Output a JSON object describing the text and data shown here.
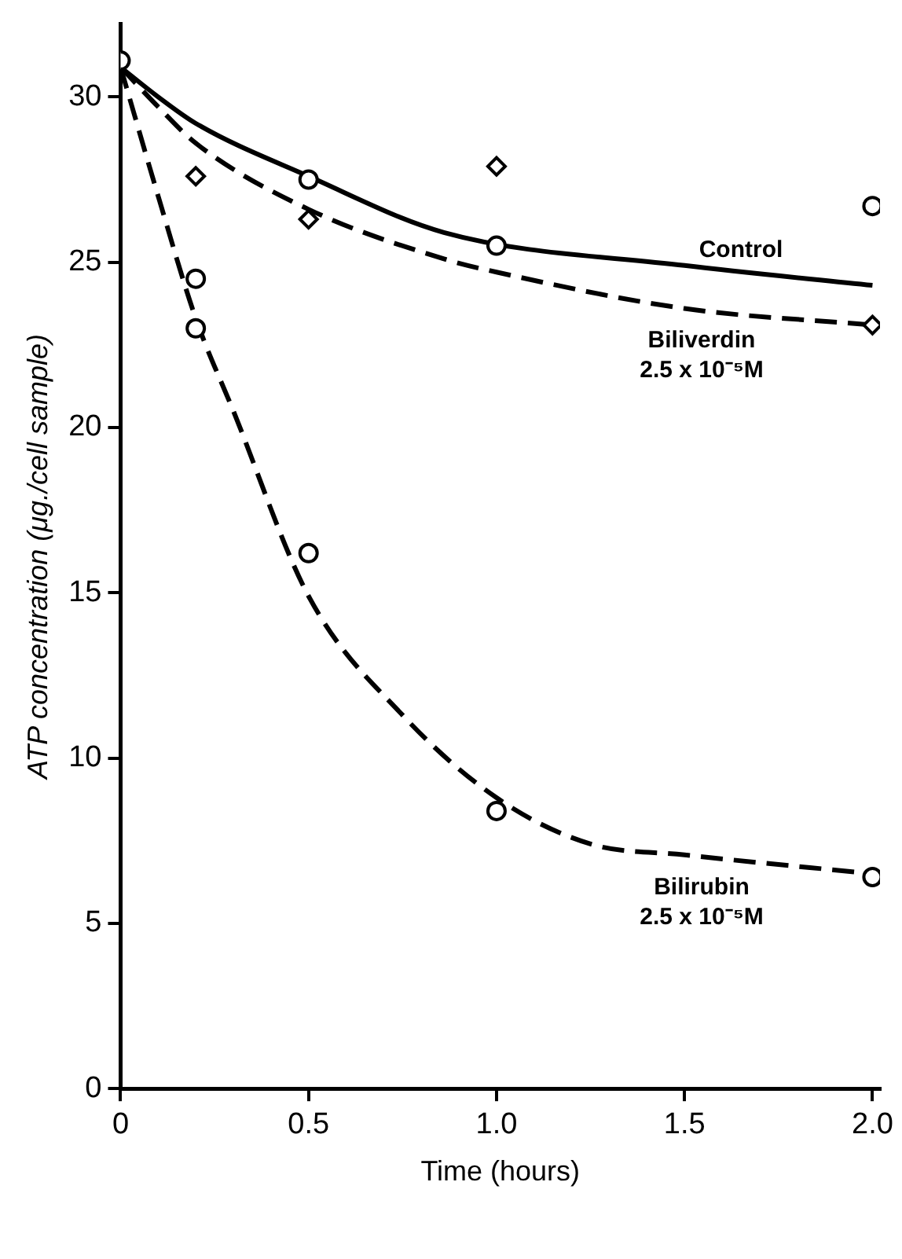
{
  "chart_data": {
    "type": "scatter",
    "xlabel": "Time (hours)",
    "ylabel": "ATP concentration (μg./cell sample)",
    "xlim": [
      0,
      2.02
    ],
    "ylim": [
      0,
      32.2
    ],
    "xticks": [
      0,
      0.5,
      {
        "value": 1,
        "label": "1.0"
      },
      1.5,
      {
        "value": 2,
        "label": "2.0"
      }
    ],
    "yticks": [
      0,
      5,
      10,
      15,
      20,
      25,
      30
    ],
    "grid": false,
    "legend": false,
    "series": [
      {
        "color": "#000000",
        "marker": "circle",
        "x": [
          0,
          0.2,
          0.5,
          1,
          2
        ],
        "values": [
          31.1,
          24.5,
          27.5,
          25.5,
          26.7
        ]
      },
      {
        "color": "#000000",
        "marker": "diamond",
        "x": [
          0.2,
          0.5,
          1,
          2
        ],
        "values": [
          27.6,
          26.3,
          27.9,
          23.1
        ]
      },
      {
        "color": "#000000",
        "marker": "circle",
        "x": [
          0.2,
          0.5,
          1,
          2
        ],
        "values": [
          23.0,
          16.2,
          8.4,
          6.4
        ]
      },
      {
        "type": "line",
        "name": "Control",
        "color": "#000000",
        "line_style": "solid",
        "x": [
          0,
          0.1,
          0.2,
          0.5,
          0.86,
          1.5,
          2
        ],
        "values": [
          30.9,
          30.0,
          29.2,
          27.6,
          25.9,
          24.9,
          24.3
        ]
      },
      {
        "type": "line",
        "name": "Biliverdin 2.5 x 10⁻⁵M",
        "color": "#000000",
        "line_style": "dashed",
        "x": [
          0,
          0.1,
          0.2,
          0.5,
          0.86,
          1,
          1.5,
          2
        ],
        "values": [
          30.9,
          29.7,
          28.6,
          26.6,
          25.1,
          24.7,
          23.6,
          23.1
        ]
      },
      {
        "type": "line",
        "name": "Bilirubin 2.5 x 10⁻⁵M",
        "color": "#000000",
        "line_style": "dashed",
        "x": [
          0,
          0.1,
          0.2,
          0.3,
          0.5,
          0.75,
          1,
          1.25,
          1.5,
          2
        ],
        "values": [
          30.9,
          27,
          23.3,
          20.5,
          14.9,
          11.3,
          8.8,
          7.4,
          7.07,
          6.5
        ]
      }
    ]
  }
}
